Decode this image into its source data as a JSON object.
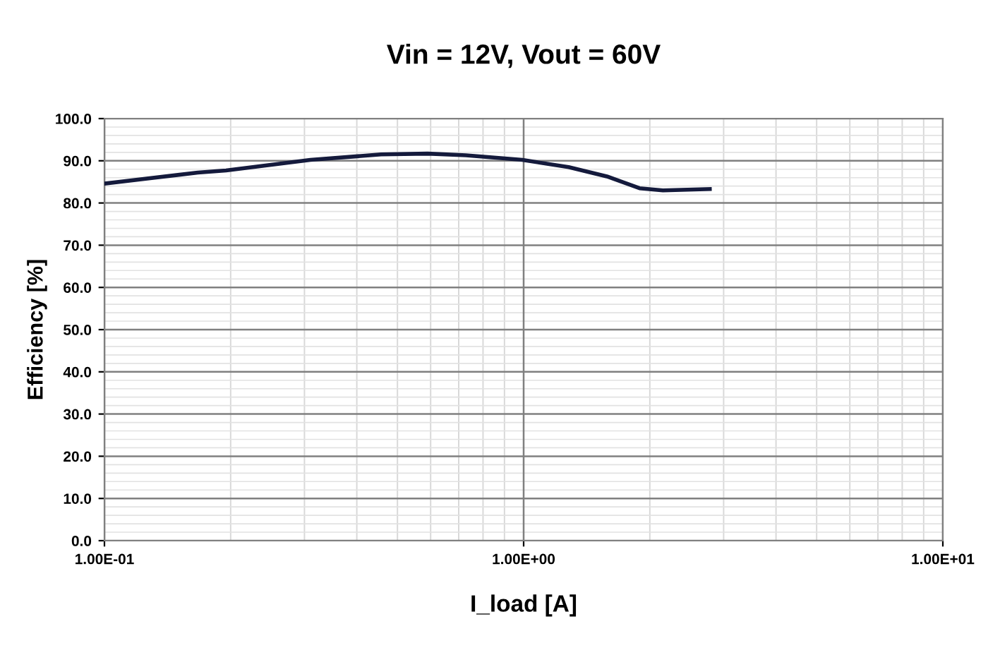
{
  "chart_data": {
    "type": "line",
    "title": "Vin = 12V, Vout = 60V",
    "xlabel": "I_load [A]",
    "ylabel": "Efficiency [%]",
    "log": "x",
    "grid": true,
    "xlim": [
      0.1,
      10
    ],
    "xticks": [
      {
        "value": 0.1,
        "label": "1.00E-01"
      },
      {
        "value": 1,
        "label": "1.00E+00"
      },
      {
        "value": 10,
        "label": "1.00E+01"
      }
    ],
    "ylim": [
      0,
      100
    ],
    "yticks": [
      {
        "value": 0,
        "label": "0.0"
      },
      {
        "value": 10,
        "label": "10.0"
      },
      {
        "value": 20,
        "label": "20.0"
      },
      {
        "value": 30,
        "label": "30.0"
      },
      {
        "value": 40,
        "label": "40.0"
      },
      {
        "value": 50,
        "label": "50.0"
      },
      {
        "value": 60,
        "label": "60.0"
      },
      {
        "value": 70,
        "label": "70.0"
      },
      {
        "value": 80,
        "label": "80.0"
      },
      {
        "value": 90,
        "label": "90.0"
      },
      {
        "value": 100,
        "label": "100.0"
      }
    ],
    "series": [
      {
        "color": "#141a3c",
        "x": [
          0.1,
          0.167,
          0.195,
          0.31,
          0.457,
          0.59,
          0.728,
          0.993,
          1.28,
          1.58,
          1.89,
          2.15,
          2.78
        ],
        "values": [
          84.6,
          87.2,
          87.7,
          90.2,
          91.5,
          91.7,
          91.3,
          90.2,
          88.5,
          86.3,
          83.5,
          83.0,
          83.3
        ]
      }
    ]
  }
}
